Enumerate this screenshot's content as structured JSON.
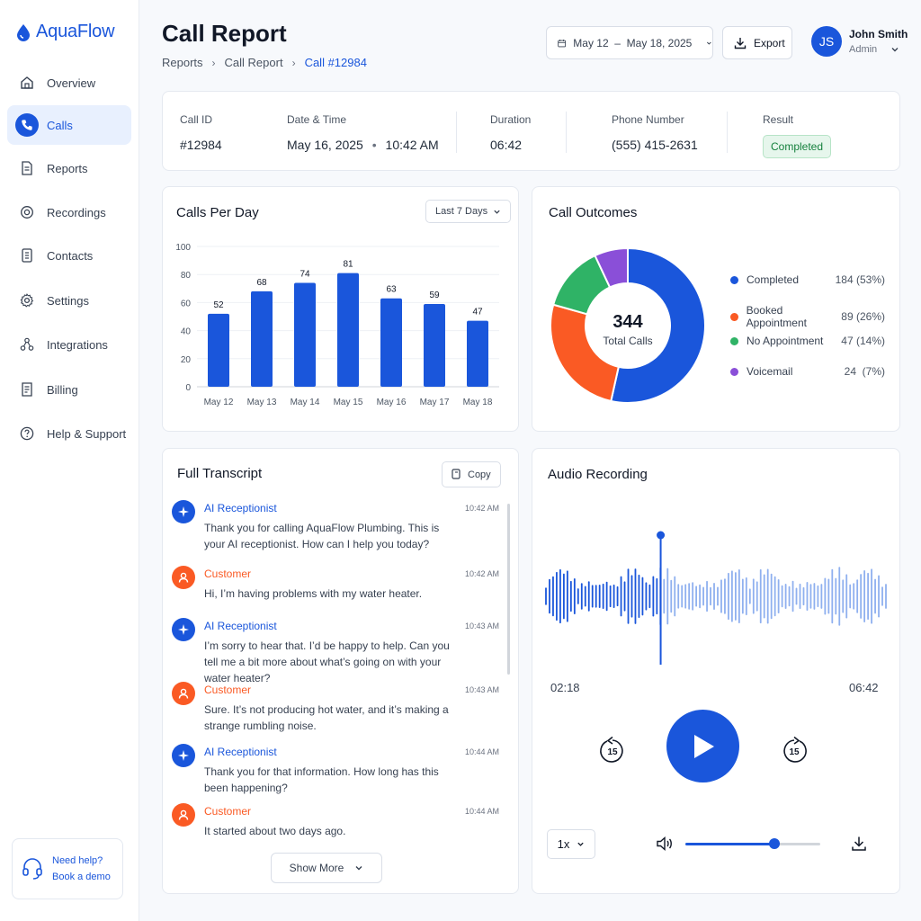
{
  "app": {
    "name": "AquaFlow"
  },
  "sidebar": {
    "items": [
      {
        "label": "Overview",
        "icon": "home-icon"
      },
      {
        "label": "Calls",
        "icon": "phone-icon",
        "active": true
      },
      {
        "label": "Reports",
        "icon": "document-icon"
      },
      {
        "label": "Recordings",
        "icon": "record-icon"
      },
      {
        "label": "Contacts",
        "icon": "contacts-icon"
      },
      {
        "label": "Settings",
        "icon": "gear-icon"
      },
      {
        "label": "Integrations",
        "icon": "integrations-icon"
      },
      {
        "label": "Billing",
        "icon": "billing-icon"
      },
      {
        "label": "Help & Support",
        "icon": "help-icon"
      }
    ],
    "help": {
      "line1": "Need help?",
      "line2": "Book a demo"
    }
  },
  "header": {
    "title": "Call Report",
    "breadcrumb": [
      "Reports",
      "Call Report",
      "Call #12984"
    ],
    "date_range": "May 12  –  May 18, 2025",
    "export_label": "Export",
    "user": {
      "initials": "JS",
      "name": "John Smith",
      "role": "Admin"
    }
  },
  "call_info": {
    "call_id_label": "Call ID",
    "call_id": "#12984",
    "datetime_label": "Date & Time",
    "date": "May 16, 2025",
    "time": "10:42 AM",
    "duration_label": "Duration",
    "duration": "06:42",
    "phone_label": "Phone Number",
    "phone": "(555) 415-2631",
    "result_label": "Result",
    "result": "Completed"
  },
  "calls_per_day": {
    "title": "Calls Per Day",
    "range_label": "Last 7 Days"
  },
  "chart_data": [
    {
      "type": "bar",
      "title": "Calls Per Day",
      "categories": [
        "May 12",
        "May 13",
        "May 14",
        "May 15",
        "May 16",
        "May 17",
        "May 18"
      ],
      "values": [
        52,
        68,
        74,
        81,
        63,
        59,
        47
      ],
      "ylim": [
        0,
        100
      ],
      "yticks": [
        0,
        20,
        40,
        60,
        80,
        100
      ],
      "grid": true,
      "color": "#1a56db"
    },
    {
      "type": "pie",
      "title": "Call Outcomes",
      "center_value": "344",
      "center_label": "Total Calls",
      "slices": [
        {
          "name": "Completed",
          "value": 184,
          "pct": "184 (53%)",
          "color": "#1a56db"
        },
        {
          "name": "Booked Appointment",
          "value": 89,
          "pct": "89 (26%)",
          "color": "#fa5a24"
        },
        {
          "name": "No Appointment",
          "value": 47,
          "pct": "47 (14%)",
          "color": "#2fb366"
        },
        {
          "name": "Voicemail",
          "value": 24,
          "pct": "24  (7%)",
          "color": "#8a4fd8"
        }
      ],
      "legend": "right"
    }
  ],
  "transcript": {
    "title": "Full Transcript",
    "copy_label": "Copy",
    "show_more_label": "Show More",
    "messages": [
      {
        "speaker": "AI Receptionist",
        "role": "ai",
        "time": "10:42 AM",
        "text": "Thank you for calling AquaFlow Plumbing. This is your AI receptionist. How can I help you today?"
      },
      {
        "speaker": "Customer",
        "role": "customer",
        "time": "10:42 AM",
        "text": "Hi, I’m having problems with my water heater."
      },
      {
        "speaker": "AI Receptionist",
        "role": "ai",
        "time": "10:43 AM",
        "text": "I’m sorry to hear that. I’d be happy to help. Can you tell me a bit more about what’s going on with your water heater?"
      },
      {
        "speaker": "Customer",
        "role": "customer",
        "time": "10:43 AM",
        "text": "Sure. It’s not producing hot water, and it’s making a strange rumbling noise."
      },
      {
        "speaker": "AI Receptionist",
        "role": "ai",
        "time": "10:44 AM",
        "text": "Thank you for that information. How long has this been happening?"
      },
      {
        "speaker": "Customer",
        "role": "customer",
        "time": "10:44 AM",
        "text": "It started about two days ago."
      }
    ]
  },
  "audio": {
    "title": "Audio Recording",
    "current_time": "02:18",
    "total_time": "06:42",
    "skip_seconds": "15",
    "speed": "1x",
    "progress_fraction": 0.34,
    "volume_fraction": 0.66
  },
  "colors": {
    "accent": "#1a56db",
    "customer": "#fa5a24",
    "success": "#15803d"
  }
}
